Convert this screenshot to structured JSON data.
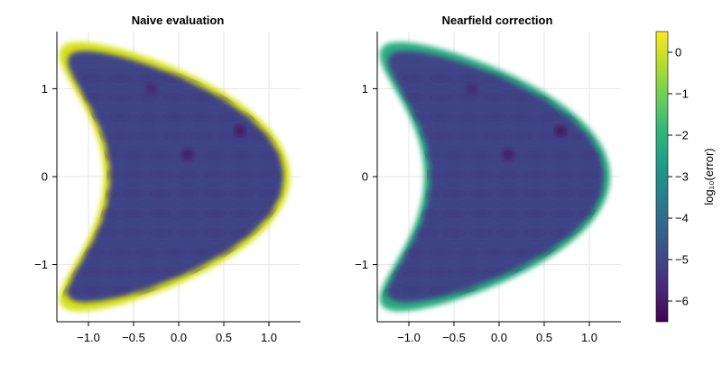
{
  "chart_data": [
    {
      "type": "heatmap",
      "title": "Naive evaluation",
      "xlim": [
        -1.35,
        1.35
      ],
      "ylim": [
        -1.65,
        1.65
      ],
      "xticks": [
        -1.0,
        -0.5,
        0.0,
        0.5,
        1.0
      ],
      "xtick_labels": [
        "−1.0",
        "−0.5",
        "0.0",
        "0.5",
        "1.0"
      ],
      "yticks": [
        -1,
        0,
        1
      ],
      "ytick_labels": [
        "−1",
        "0",
        "1"
      ],
      "grid": true,
      "domain_shape": "crescent (kite-shaped domain opening to the left)",
      "interior_log10_error_range": [
        -5.5,
        -4.3
      ],
      "boundary_log10_error_range": [
        -1.5,
        0.4
      ],
      "boundary_band_color": "#d8e219",
      "local_minima": [
        {
          "x": 0.68,
          "y": 0.52,
          "log10_error": -6.3
        },
        {
          "x": 0.1,
          "y": 0.25,
          "log10_error": -6.0
        },
        {
          "x": -0.3,
          "y": 1.0,
          "log10_error": -5.8
        }
      ]
    },
    {
      "type": "heatmap",
      "title": "Nearfield correction",
      "xlim": [
        -1.35,
        1.35
      ],
      "ylim": [
        -1.65,
        1.65
      ],
      "xticks": [
        -1.0,
        -0.5,
        0.0,
        0.5,
        1.0
      ],
      "xtick_labels": [
        "−1.0",
        "−0.5",
        "0.0",
        "0.5",
        "1.0"
      ],
      "yticks": [
        -1,
        0,
        1
      ],
      "ytick_labels": [
        "−1",
        "0",
        "1"
      ],
      "grid": true,
      "domain_shape": "crescent (kite-shaped domain opening to the left)",
      "interior_log10_error_range": [
        -5.5,
        -4.3
      ],
      "boundary_log10_error_range": [
        -3.0,
        -2.5
      ],
      "boundary_band_color": "#29af7f",
      "local_minima": [
        {
          "x": 0.68,
          "y": 0.52,
          "log10_error": -6.3
        },
        {
          "x": 0.1,
          "y": 0.25,
          "log10_error": -6.0
        },
        {
          "x": -0.3,
          "y": 1.0,
          "log10_error": -5.8
        }
      ]
    }
  ],
  "colorbar": {
    "label": "log₁₀(error)",
    "range": [
      -6.5,
      0.5
    ],
    "colormap": "viridis",
    "ticks": [
      0,
      -1,
      -2,
      -3,
      -4,
      -5,
      -6
    ],
    "tick_labels": [
      "0",
      "−1",
      "−2",
      "−3",
      "−4",
      "−5",
      "−6"
    ]
  },
  "colors": {
    "interior": "#414487",
    "interior_dark": "#3b2f7a",
    "grid": "#e6e6e6",
    "viridis_stops": [
      "#440154",
      "#482878",
      "#3e4989",
      "#31688e",
      "#26828e",
      "#1f9e89",
      "#35b779",
      "#6ece58",
      "#b5de2b",
      "#fde725"
    ]
  }
}
